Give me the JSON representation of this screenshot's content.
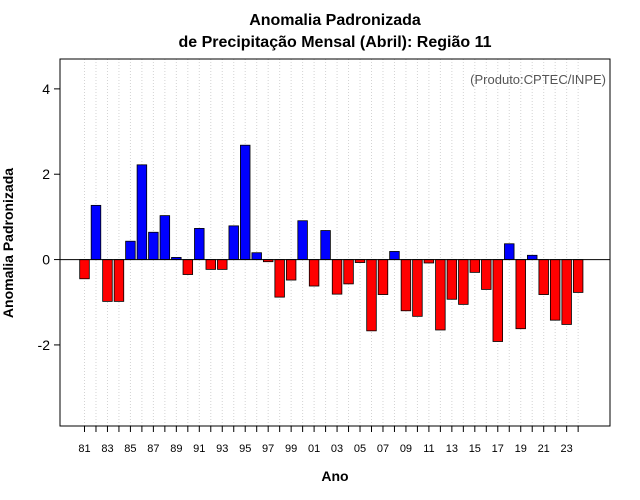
{
  "chart_data": {
    "type": "bar",
    "title_line1": "Anomalia Padronizada",
    "title_line2": "de Precipitação Mensal (Abril): Região 11",
    "xlabel": "Ano",
    "ylabel": "Anomalia Padronizada",
    "credit": "(Produto:CPTEC/INPE)",
    "ylim": [
      -3.9,
      4.7
    ],
    "yticks": [
      -2,
      0,
      2,
      4
    ],
    "ytick_labels": [
      "-2",
      "0",
      "2",
      "4"
    ],
    "grid": true,
    "positive_color": "#0000ff",
    "negative_color": "#ff0000",
    "categories": [
      "1981",
      "1982",
      "1983",
      "1984",
      "1985",
      "1986",
      "1987",
      "1988",
      "1989",
      "1990",
      "1991",
      "1992",
      "1993",
      "1994",
      "1995",
      "1996",
      "1997",
      "1998",
      "1999",
      "2000",
      "2001",
      "2002",
      "2003",
      "2004",
      "2005",
      "2006",
      "2007",
      "2008",
      "2009",
      "2010",
      "2011",
      "2012",
      "2013",
      "2014",
      "2015",
      "2016",
      "2017",
      "2018",
      "2019",
      "2020",
      "2021",
      "2022",
      "2023",
      "2024"
    ],
    "xtick_labels": [
      "81",
      "83",
      "85",
      "87",
      "89",
      "91",
      "93",
      "95",
      "97",
      "99",
      "01",
      "03",
      "05",
      "07",
      "09",
      "11",
      "13",
      "15",
      "17",
      "19",
      "21",
      "23"
    ],
    "values": [
      -0.45,
      1.27,
      -0.98,
      -0.98,
      0.43,
      2.22,
      0.64,
      1.03,
      0.05,
      -0.35,
      0.73,
      -0.23,
      -0.23,
      0.79,
      2.68,
      0.16,
      -0.05,
      -0.88,
      -0.48,
      0.91,
      -0.62,
      0.68,
      -0.81,
      -0.57,
      -0.07,
      -1.67,
      -0.82,
      0.19,
      -1.2,
      -1.33,
      -0.08,
      -1.65,
      -0.93,
      -1.05,
      -0.3,
      -0.7,
      -1.92,
      0.37,
      -1.62,
      0.1,
      -0.82,
      -1.42,
      -1.52,
      -0.77
    ]
  }
}
